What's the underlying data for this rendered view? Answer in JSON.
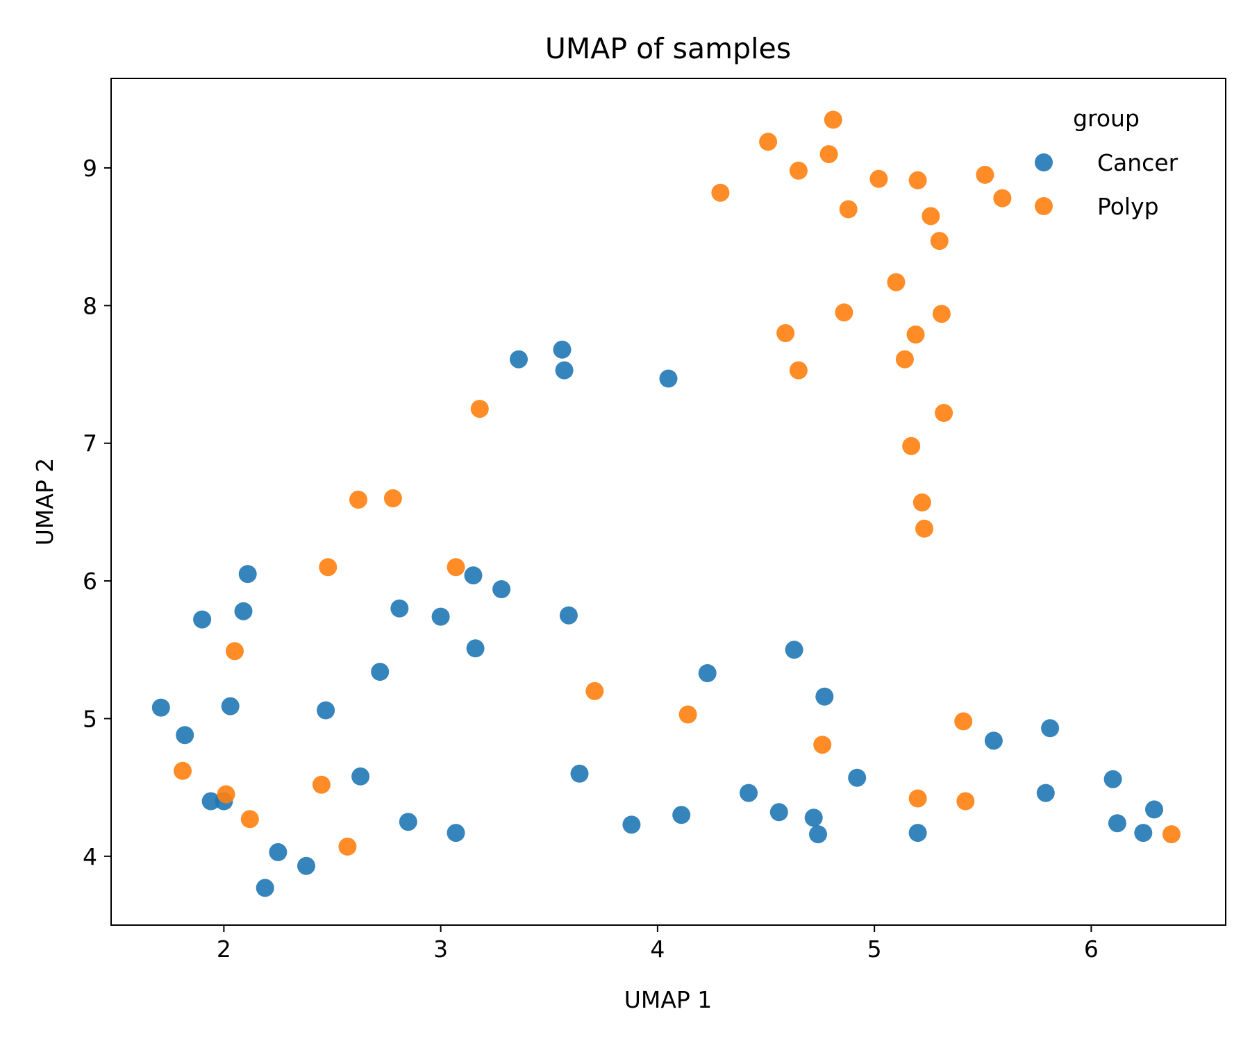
{
  "chart_data": {
    "type": "scatter",
    "title": "UMAP of samples",
    "xlabel": "UMAP 1",
    "ylabel": "UMAP 2",
    "xlim": [
      1.48,
      6.62
    ],
    "ylim": [
      3.5,
      9.65
    ],
    "xticks": [
      2,
      3,
      4,
      5,
      6
    ],
    "yticks": [
      4,
      5,
      6,
      7,
      8,
      9
    ],
    "grid": false,
    "legend": {
      "title": "group",
      "position": "top-right"
    },
    "series": [
      {
        "name": "Cancer",
        "color": "#1f77b4",
        "points": [
          [
            1.71,
            5.08
          ],
          [
            1.82,
            4.88
          ],
          [
            1.9,
            5.72
          ],
          [
            1.94,
            4.4
          ],
          [
            2.0,
            4.4
          ],
          [
            2.03,
            5.09
          ],
          [
            2.09,
            5.78
          ],
          [
            2.11,
            6.05
          ],
          [
            2.19,
            3.77
          ],
          [
            2.25,
            4.03
          ],
          [
            2.38,
            3.93
          ],
          [
            2.47,
            5.06
          ],
          [
            2.63,
            4.58
          ],
          [
            2.72,
            5.34
          ],
          [
            2.81,
            5.8
          ],
          [
            2.85,
            4.25
          ],
          [
            3.0,
            5.74
          ],
          [
            3.07,
            4.17
          ],
          [
            3.15,
            6.04
          ],
          [
            3.16,
            5.51
          ],
          [
            3.28,
            5.94
          ],
          [
            3.36,
            7.61
          ],
          [
            3.56,
            7.68
          ],
          [
            3.57,
            7.53
          ],
          [
            3.59,
            5.75
          ],
          [
            3.64,
            4.6
          ],
          [
            3.88,
            4.23
          ],
          [
            4.05,
            7.47
          ],
          [
            4.11,
            4.3
          ],
          [
            4.23,
            5.33
          ],
          [
            4.42,
            4.46
          ],
          [
            4.56,
            4.32
          ],
          [
            4.63,
            5.5
          ],
          [
            4.72,
            4.28
          ],
          [
            4.74,
            4.16
          ],
          [
            4.77,
            5.16
          ],
          [
            4.92,
            4.57
          ],
          [
            5.2,
            4.17
          ],
          [
            5.55,
            4.84
          ],
          [
            5.79,
            4.46
          ],
          [
            5.81,
            4.93
          ],
          [
            6.1,
            4.56
          ],
          [
            6.12,
            4.24
          ],
          [
            6.24,
            4.17
          ],
          [
            6.29,
            4.34
          ]
        ]
      },
      {
        "name": "Polyp",
        "color": "#ff7f0e",
        "points": [
          [
            1.81,
            4.62
          ],
          [
            2.01,
            4.45
          ],
          [
            2.05,
            5.49
          ],
          [
            2.12,
            4.27
          ],
          [
            2.45,
            4.52
          ],
          [
            2.48,
            6.1
          ],
          [
            2.57,
            4.07
          ],
          [
            2.62,
            6.59
          ],
          [
            2.78,
            6.6
          ],
          [
            3.07,
            6.1
          ],
          [
            3.18,
            7.25
          ],
          [
            3.71,
            5.2
          ],
          [
            4.14,
            5.03
          ],
          [
            4.29,
            8.82
          ],
          [
            4.51,
            9.19
          ],
          [
            4.59,
            7.8
          ],
          [
            4.65,
            8.98
          ],
          [
            4.65,
            7.53
          ],
          [
            4.76,
            4.81
          ],
          [
            4.79,
            9.1
          ],
          [
            4.81,
            9.35
          ],
          [
            4.86,
            7.95
          ],
          [
            4.88,
            8.7
          ],
          [
            5.02,
            8.92
          ],
          [
            5.1,
            8.17
          ],
          [
            5.14,
            7.61
          ],
          [
            5.17,
            6.98
          ],
          [
            5.19,
            7.79
          ],
          [
            5.2,
            8.91
          ],
          [
            5.2,
            4.42
          ],
          [
            5.22,
            6.57
          ],
          [
            5.23,
            6.38
          ],
          [
            5.26,
            8.65
          ],
          [
            5.3,
            8.47
          ],
          [
            5.31,
            7.94
          ],
          [
            5.32,
            7.22
          ],
          [
            5.41,
            4.98
          ],
          [
            5.42,
            4.4
          ],
          [
            5.51,
            8.95
          ],
          [
            5.59,
            8.78
          ],
          [
            6.37,
            4.16
          ]
        ]
      }
    ]
  }
}
